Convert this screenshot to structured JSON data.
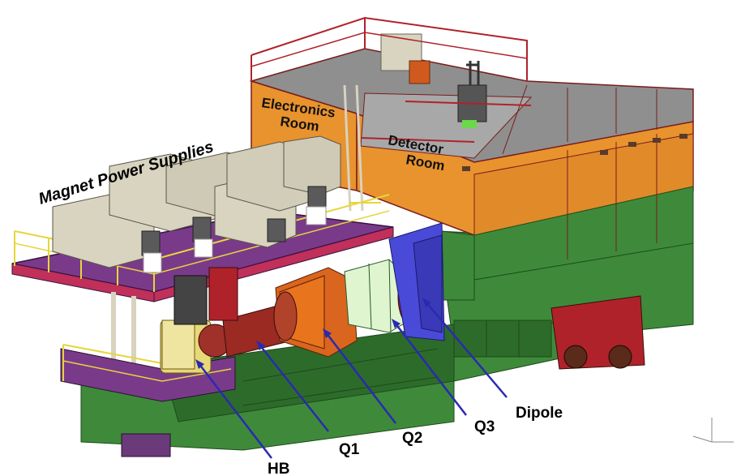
{
  "labels": {
    "magnet_power_supplies": "Magnet Power Supplies",
    "electronics_room_line1": "Electronics",
    "electronics_room_line2": "Room",
    "detector_room_line1": "Detector",
    "detector_room_line2": "Room",
    "hb": "HB",
    "q1": "Q1",
    "q2": "Q2",
    "q3": "Q3",
    "dipole": "Dipole"
  },
  "colors": {
    "room_orange": "#e8932e",
    "base_green": "#3e8a3a",
    "base_green_dark": "#2d6b2a",
    "roof_gray": "#8f8f8f",
    "platform_purple": "#7a3a8a",
    "magnet_orange": "#d9651e",
    "q3_green": "#dff5cf",
    "dipole_blue": "#4a4ad8",
    "railing_red": "#b0222a",
    "railing_yellow": "#e6d63a",
    "arrow_blue": "#2a2ab0"
  }
}
